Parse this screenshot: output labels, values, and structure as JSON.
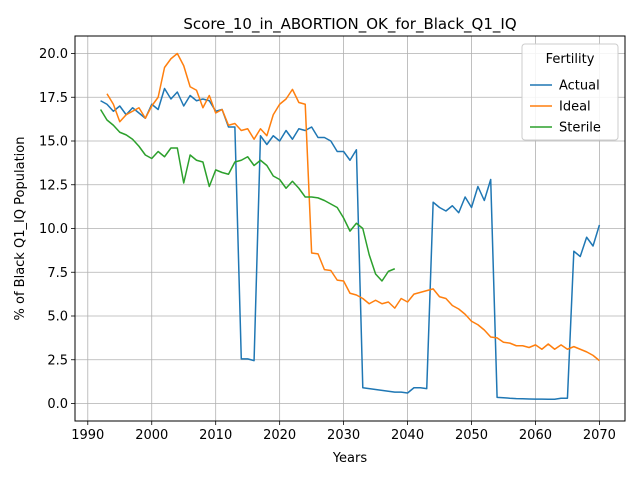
{
  "chart_data": {
    "type": "line",
    "title": "Score_10_in_ABORTION_OK_for_Black_Q1_IQ",
    "xlabel": "Years",
    "ylabel": "% of Black Q1_IQ Population",
    "xlim": [
      1988,
      2074
    ],
    "ylim": [
      -1.0,
      21.0
    ],
    "xticks": [
      1990,
      2000,
      2010,
      2020,
      2030,
      2040,
      2050,
      2060,
      2070
    ],
    "yticks": [
      0.0,
      2.5,
      5.0,
      7.5,
      10.0,
      12.5,
      15.0,
      17.5,
      20.0
    ],
    "grid": true,
    "legend": {
      "title": "Fertility",
      "placement": "top-right"
    },
    "series": [
      {
        "name": "Actual",
        "color": "#1f77b4",
        "x": [
          1992,
          1993,
          1994,
          1995,
          1996,
          1997,
          1998,
          1999,
          2000,
          2001,
          2002,
          2003,
          2004,
          2005,
          2006,
          2007,
          2008,
          2009,
          2010,
          2011,
          2012,
          2013,
          2014,
          2015,
          2016,
          2017,
          2018,
          2019,
          2020,
          2021,
          2022,
          2023,
          2024,
          2025,
          2026,
          2027,
          2028,
          2029,
          2030,
          2031,
          2032,
          2033,
          2034,
          2035,
          2036,
          2037,
          2038,
          2039,
          2040,
          2041,
          2042,
          2043,
          2044,
          2045,
          2046,
          2047,
          2048,
          2049,
          2050,
          2051,
          2052,
          2053,
          2054,
          2055,
          2056,
          2057,
          2058,
          2059,
          2060,
          2061,
          2062,
          2063,
          2064,
          2065,
          2066,
          2067,
          2068,
          2069,
          2070
        ],
        "y": [
          17.3,
          17.1,
          16.7,
          17.0,
          16.5,
          16.9,
          16.6,
          16.3,
          17.1,
          16.8,
          18.0,
          17.4,
          17.8,
          17.0,
          17.6,
          17.3,
          17.4,
          17.3,
          16.7,
          16.8,
          15.8,
          15.8,
          2.55,
          2.55,
          2.45,
          15.3,
          14.8,
          15.3,
          15.0,
          15.6,
          15.1,
          15.7,
          15.6,
          15.8,
          15.2,
          15.2,
          15.0,
          14.4,
          14.4,
          13.9,
          14.5,
          0.9,
          0.85,
          0.8,
          0.75,
          0.7,
          0.65,
          0.65,
          0.6,
          0.9,
          0.9,
          0.85,
          11.5,
          11.2,
          11.0,
          11.3,
          10.9,
          11.8,
          11.2,
          12.4,
          11.6,
          12.8,
          0.35,
          0.33,
          0.3,
          0.28,
          0.27,
          0.26,
          0.25,
          0.25,
          0.24,
          0.24,
          0.3,
          0.3,
          8.7,
          8.4,
          9.5,
          9.0,
          10.2
        ]
      },
      {
        "name": "Ideal",
        "color": "#ff7f0e",
        "x": [
          1993,
          1994,
          1995,
          1996,
          1997,
          1998,
          1999,
          2000,
          2001,
          2002,
          2003,
          2004,
          2005,
          2006,
          2007,
          2008,
          2009,
          2010,
          2011,
          2012,
          2013,
          2014,
          2015,
          2016,
          2017,
          2018,
          2019,
          2020,
          2021,
          2022,
          2023,
          2024,
          2025,
          2026,
          2027,
          2028,
          2029,
          2030,
          2031,
          2032,
          2033,
          2034,
          2035,
          2036,
          2037,
          2038,
          2039,
          2040,
          2041,
          2042,
          2043,
          2044,
          2045,
          2046,
          2047,
          2048,
          2049,
          2050,
          2051,
          2052,
          2053,
          2054,
          2055,
          2056,
          2057,
          2058,
          2059,
          2060,
          2061,
          2062,
          2063,
          2064,
          2065,
          2066,
          2067,
          2068,
          2069,
          2070
        ],
        "y": [
          17.7,
          17.1,
          16.1,
          16.5,
          16.7,
          16.9,
          16.3,
          17.0,
          17.5,
          19.2,
          19.7,
          20.0,
          19.3,
          18.1,
          17.9,
          16.9,
          17.6,
          16.6,
          16.8,
          15.9,
          16.0,
          15.6,
          15.7,
          15.1,
          15.7,
          15.3,
          16.5,
          17.1,
          17.4,
          17.95,
          17.2,
          17.1,
          8.6,
          8.55,
          7.65,
          7.6,
          7.05,
          7.0,
          6.3,
          6.2,
          6.0,
          5.7,
          5.9,
          5.7,
          5.8,
          5.45,
          6.0,
          5.8,
          6.25,
          6.35,
          6.45,
          6.55,
          6.1,
          6.0,
          5.6,
          5.4,
          5.1,
          4.7,
          4.5,
          4.2,
          3.8,
          3.75,
          3.5,
          3.45,
          3.3,
          3.3,
          3.2,
          3.35,
          3.1,
          3.4,
          3.1,
          3.35,
          3.1,
          3.25,
          3.1,
          2.95,
          2.75,
          2.45
        ]
      },
      {
        "name": "Sterile",
        "color": "#2ca02c",
        "x": [
          1992,
          1993,
          1994,
          1995,
          1996,
          1997,
          1998,
          1999,
          2000,
          2001,
          2002,
          2003,
          2004,
          2005,
          2006,
          2007,
          2008,
          2009,
          2010,
          2011,
          2012,
          2013,
          2014,
          2015,
          2016,
          2017,
          2018,
          2019,
          2020,
          2021,
          2022,
          2023,
          2024,
          2025,
          2026,
          2027,
          2028,
          2029,
          2030,
          2031,
          2032,
          2033,
          2034,
          2035,
          2036,
          2037,
          2038
        ],
        "y": [
          16.8,
          16.2,
          15.9,
          15.5,
          15.35,
          15.1,
          14.7,
          14.2,
          14.0,
          14.4,
          14.1,
          14.6,
          14.6,
          12.6,
          14.2,
          13.9,
          13.8,
          12.4,
          13.35,
          13.2,
          13.1,
          13.8,
          13.9,
          14.1,
          13.6,
          13.9,
          13.6,
          13.0,
          12.8,
          12.3,
          12.7,
          12.3,
          11.8,
          11.8,
          11.75,
          11.6,
          11.4,
          11.2,
          10.6,
          9.85,
          10.3,
          10.0,
          8.5,
          7.4,
          7.0,
          7.55,
          7.7
        ]
      }
    ]
  }
}
